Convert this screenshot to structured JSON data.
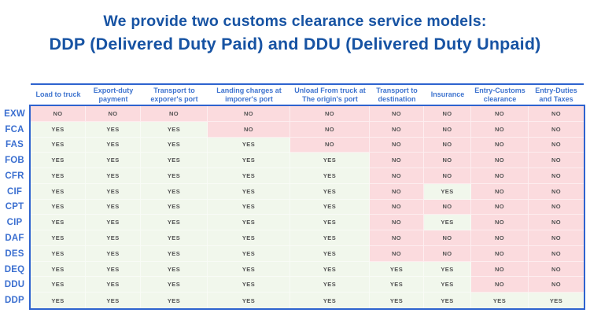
{
  "title": {
    "line1": "We provide two customs clearance service models:",
    "line2": "DDP (Delivered Duty Paid) and DDU (Delivered Duty Unpaid)"
  },
  "chart_data": {
    "type": "table",
    "title": "We provide two customs clearance service models: DDP (Delivered Duty Paid) and DDU (Delivered Duty Unpaid)",
    "columns": [
      "Load to truck",
      "Export-duty payment",
      "Transport to exporer's port",
      "Landing charges at imporer's port",
      "Unload From truck at The origin's port",
      "Transport to destination",
      "Insurance",
      "Entry-Customs clearance",
      "Entry-Duties and Taxes"
    ],
    "row_labels": [
      "EXW",
      "FCA",
      "FAS",
      "FOB",
      "CFR",
      "CIF",
      "CPT",
      "CIP",
      "DAF",
      "DES",
      "DEQ",
      "DDU",
      "DDP"
    ],
    "rows": [
      [
        "NO",
        "NO",
        "NO",
        "NO",
        "NO",
        "NO",
        "NO",
        "NO",
        "NO"
      ],
      [
        "YES",
        "YES",
        "YES",
        "NO",
        "NO",
        "NO",
        "NO",
        "NO",
        "NO"
      ],
      [
        "YES",
        "YES",
        "YES",
        "YES",
        "NO",
        "NO",
        "NO",
        "NO",
        "NO"
      ],
      [
        "YES",
        "YES",
        "YES",
        "YES",
        "YES",
        "NO",
        "NO",
        "NO",
        "NO"
      ],
      [
        "YES",
        "YES",
        "YES",
        "YES",
        "YES",
        "NO",
        "NO",
        "NO",
        "NO"
      ],
      [
        "YES",
        "YES",
        "YES",
        "YES",
        "YES",
        "NO",
        "YES",
        "NO",
        "NO"
      ],
      [
        "YES",
        "YES",
        "YES",
        "YES",
        "YES",
        "NO",
        "NO",
        "NO",
        "NO"
      ],
      [
        "YES",
        "YES",
        "YES",
        "YES",
        "YES",
        "NO",
        "YES",
        "NO",
        "NO"
      ],
      [
        "YES",
        "YES",
        "YES",
        "YES",
        "YES",
        "NO",
        "NO",
        "NO",
        "NO"
      ],
      [
        "YES",
        "YES",
        "YES",
        "YES",
        "YES",
        "NO",
        "NO",
        "NO",
        "NO"
      ],
      [
        "YES",
        "YES",
        "YES",
        "YES",
        "YES",
        "YES",
        "YES",
        "NO",
        "NO"
      ],
      [
        "YES",
        "YES",
        "YES",
        "YES",
        "YES",
        "YES",
        "YES",
        "NO",
        "NO"
      ],
      [
        "YES",
        "YES",
        "YES",
        "YES",
        "YES",
        "YES",
        "YES",
        "YES",
        "YES"
      ]
    ],
    "cell_values_meaning": {
      "YES": "included",
      "NO": "not included"
    },
    "layout_hints": {
      "yes_cells": "light green",
      "no_cells": "light pink",
      "grid": "subtle white separators"
    }
  },
  "colors": {
    "title_blue": "#1753a3",
    "header_blue": "#3f74cf",
    "label_blue": "#3b6fd0",
    "border_blue": "#2e63cf",
    "yes_bg": "#f1f7ec",
    "no_bg": "#fbdbde",
    "cell_text": "#545454"
  }
}
